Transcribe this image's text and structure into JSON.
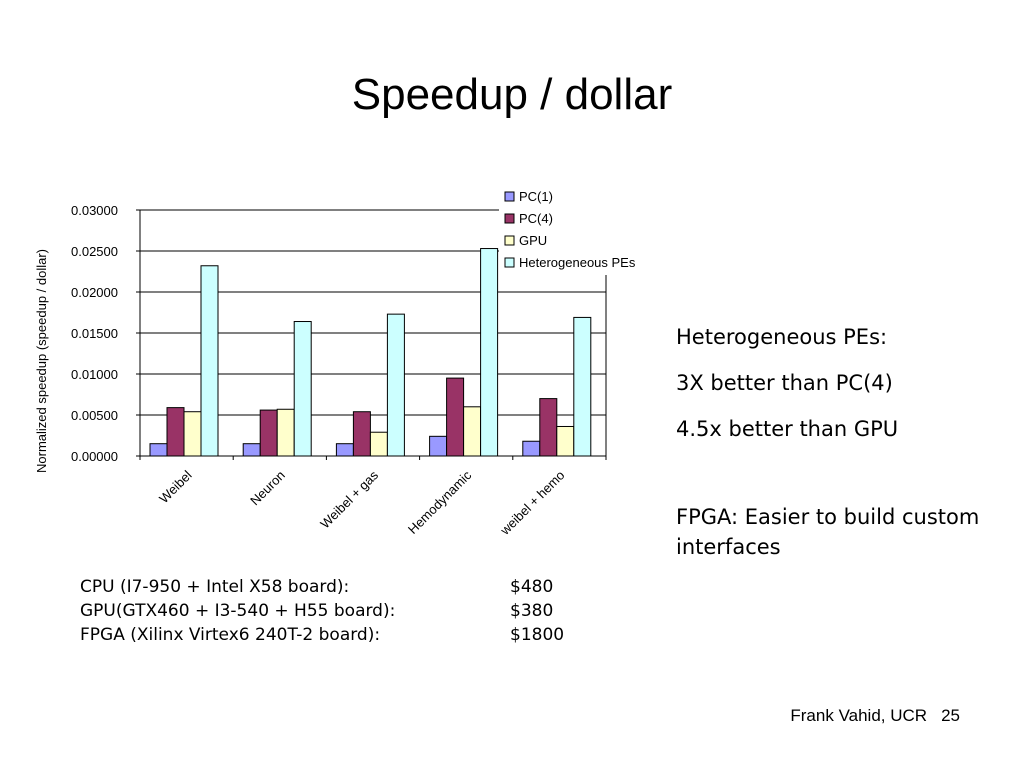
{
  "slide": {
    "title": "Speedup / dollar",
    "notes": [
      "Heterogeneous PEs:",
      "3X better than PC(4)",
      "4.5x better than GPU",
      "FPGA: Easier to build custom interfaces"
    ],
    "costs": [
      {
        "label": "CPU (I7-950 + Intel X58 board):",
        "price": "$480"
      },
      {
        "label": "GPU(GTX460 + I3-540 + H55 board):",
        "price": "$380"
      },
      {
        "label": "FPGA (Xilinx Virtex6 240T-2 board):",
        "price": "$1800"
      }
    ],
    "footer": {
      "author": "Frank Vahid, UCR",
      "page": "25"
    }
  },
  "chart_data": {
    "type": "bar",
    "categories": [
      "Weibel",
      "Neuron",
      "Weibel + gas",
      "Hemodynamic",
      "weibel + hemo"
    ],
    "series": [
      {
        "name": "PC(1)",
        "color": "#9999ff",
        "values": [
          0.0015,
          0.0015,
          0.0015,
          0.0024,
          0.0018
        ]
      },
      {
        "name": "PC(4)",
        "color": "#993366",
        "values": [
          0.0059,
          0.0056,
          0.0054,
          0.0095,
          0.007
        ]
      },
      {
        "name": "GPU",
        "color": "#ffffcc",
        "values": [
          0.0054,
          0.0057,
          0.0029,
          0.006,
          0.0036
        ]
      },
      {
        "name": "Heterogeneous PEs",
        "color": "#ccffff",
        "values": [
          0.0232,
          0.0164,
          0.0173,
          0.0253,
          0.0169
        ]
      }
    ],
    "title": "",
    "xlabel": "",
    "ylabel": "Normalized speedup (speedup / dollar)",
    "ylim": [
      0,
      0.03
    ],
    "yticks": [
      "0.00000",
      "0.00500",
      "0.01000",
      "0.01500",
      "0.02000",
      "0.02500",
      "0.03000"
    ],
    "grid": true,
    "legend": "top-right"
  }
}
